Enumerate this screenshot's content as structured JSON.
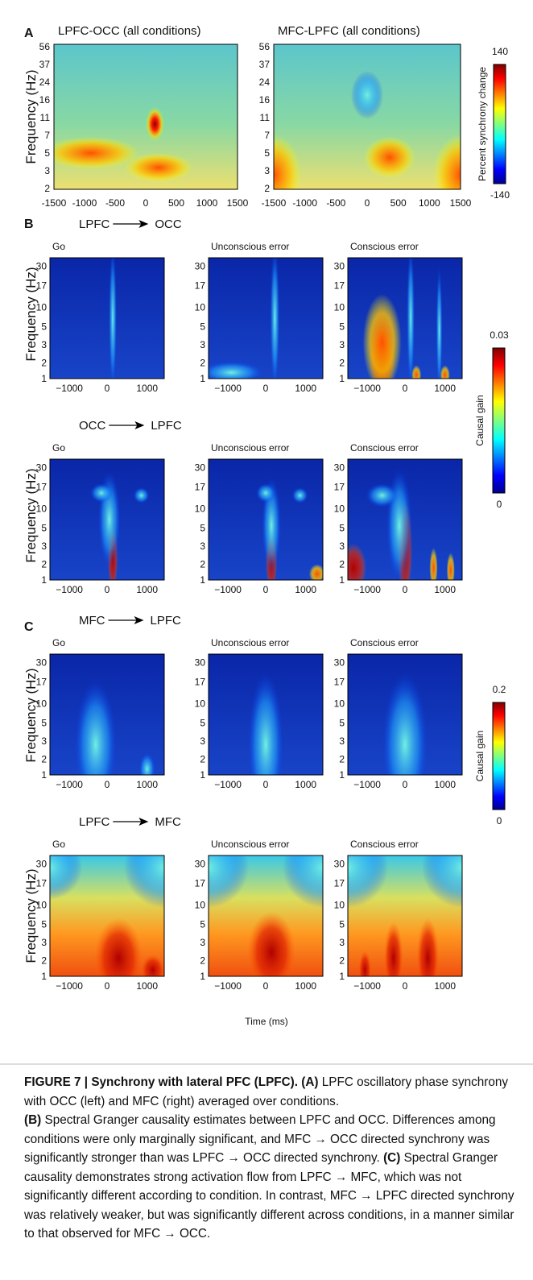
{
  "panel_a": {
    "label": "A",
    "y_axis_label": "Frequency (Hz)",
    "yticks": [
      "56",
      "37",
      "24",
      "16",
      "11",
      "7",
      "5",
      "3",
      "2"
    ],
    "xticks": [
      "-1500",
      "-1000",
      "-500",
      "0",
      "500",
      "1000",
      "1500"
    ],
    "plots": [
      {
        "title": "LPFC-OCC (all conditions)"
      },
      {
        "title": "MFC-LPFC (all conditions)"
      }
    ],
    "colorbar": {
      "label": "Percent synchrony change",
      "max": "140",
      "min": "-140"
    }
  },
  "panel_b": {
    "label": "B",
    "y_axis_label": "Frequency (Hz)",
    "yticks": [
      "30",
      "17",
      "10",
      "5",
      "3",
      "2",
      "1"
    ],
    "xticks": [
      "−1000",
      "0",
      "1000"
    ],
    "rows": [
      {
        "from": "LPFC",
        "to": "OCC",
        "conditions": [
          "Go",
          "Unconscious error",
          "Conscious error"
        ]
      },
      {
        "from": "OCC",
        "to": "LPFC",
        "conditions": [
          "Go",
          "Unconscious error",
          "Conscious error"
        ]
      }
    ],
    "colorbar": {
      "label": "Causal gain",
      "max": "0.03",
      "min": "0"
    }
  },
  "panel_c": {
    "label": "C",
    "y_axis_label": "Frequency (Hz)",
    "yticks": [
      "30",
      "17",
      "10",
      "5",
      "3",
      "2",
      "1"
    ],
    "xticks": [
      "−1000",
      "0",
      "1000"
    ],
    "rows": [
      {
        "from": "MFC",
        "to": "LPFC",
        "conditions": [
          "Go",
          "Unconscious error",
          "Conscious error"
        ]
      },
      {
        "from": "LPFC",
        "to": "MFC",
        "conditions": [
          "Go",
          "Unconscious error",
          "Conscious error"
        ]
      }
    ],
    "colorbar": {
      "label": "Causal gain",
      "max": "0.2",
      "min": "0"
    },
    "x_axis_label": "Time (ms)"
  },
  "caption": {
    "parts": [
      "FIGURE 7 | Synchrony with lateral PFC (LPFC).",
      "(A)",
      "LPFC oscillatory phase synchrony with OCC (left) and MFC (right) averaged over conditions.",
      "(B)",
      "Spectral Granger causality estimates between LPFC and OCC. Differences among conditions were only marginally significant, and MFC → OCC directed synchrony was significantly stronger than was LPFC → OCC directed synchrony.",
      "(C)",
      "Spectral Granger causality demonstrates strong activation flow from LPFC → MFC, which was not significantly different according to condition. In contrast, MFC → LPFC directed synchrony was relatively weaker, but was significantly different across conditions, in a manner similar to that observed for MFC → OCC."
    ]
  }
}
